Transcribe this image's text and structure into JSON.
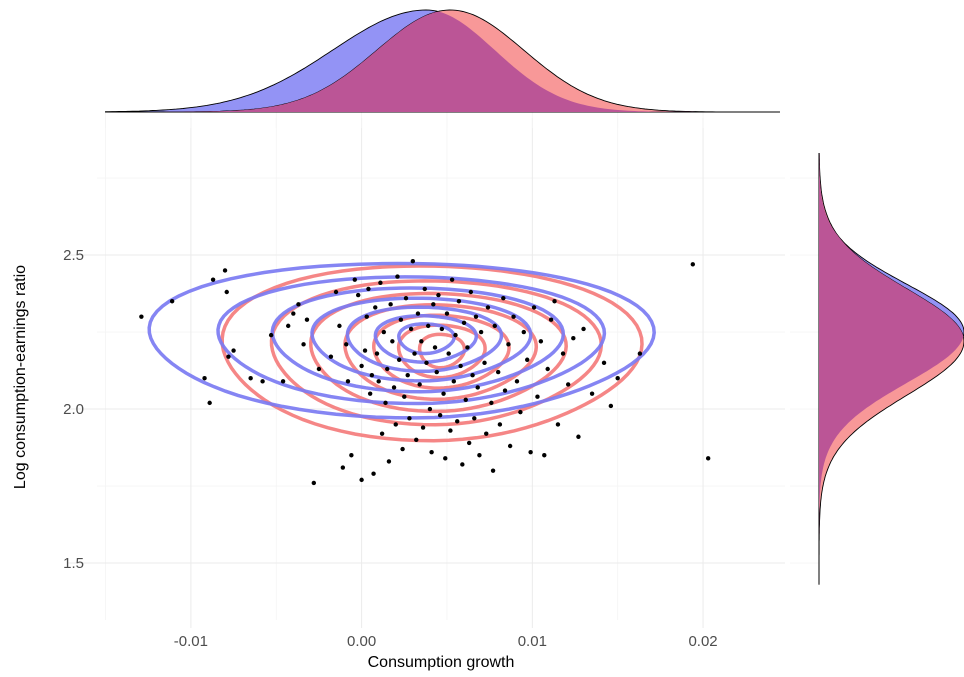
{
  "chart_data": {
    "type": "scatter",
    "xlabel": "Consumption growth",
    "ylabel": "Log consumption-earnings ratio",
    "xlim": [
      -0.0155,
      0.0248
    ],
    "ylim": [
      1.38,
      2.88
    ],
    "x_ticks": [
      -0.01,
      0.0,
      0.01,
      0.02
    ],
    "x_tick_labels": [
      "-0.01",
      "0.00",
      "0.01",
      "0.02"
    ],
    "y_ticks": [
      1.5,
      2.0,
      2.5
    ],
    "y_tick_labels": [
      "1.5",
      "2.0",
      "2.5"
    ],
    "grid": true,
    "legend": "none",
    "colors": {
      "blue": "#7b7bf2",
      "red": "#f47c7c",
      "blue_fill": "#9393f5",
      "red_fill": "#f89898",
      "overlap_fill": "#bb5596",
      "points": "#000000"
    },
    "points": [
      [
        -0.0129,
        2.3
      ],
      [
        -0.0111,
        2.35
      ],
      [
        -0.0092,
        2.1
      ],
      [
        -0.0089,
        2.02
      ],
      [
        -0.0087,
        2.42
      ],
      [
        -0.008,
        2.45
      ],
      [
        -0.0079,
        2.38
      ],
      [
        -0.0078,
        2.17
      ],
      [
        -0.0075,
        2.19
      ],
      [
        -0.0065,
        2.1
      ],
      [
        -0.0058,
        2.09
      ],
      [
        -0.0053,
        2.24
      ],
      [
        -0.0046,
        2.09
      ],
      [
        -0.0043,
        2.27
      ],
      [
        -0.004,
        2.31
      ],
      [
        -0.0037,
        2.34
      ],
      [
        -0.0034,
        2.21
      ],
      [
        -0.0032,
        2.29
      ],
      [
        -0.0028,
        1.76
      ],
      [
        -0.0025,
        2.13
      ],
      [
        -0.0018,
        2.17
      ],
      [
        -0.0015,
        2.38
      ],
      [
        -0.0013,
        2.27
      ],
      [
        -0.0011,
        1.81
      ],
      [
        -0.0009,
        2.21
      ],
      [
        -0.0008,
        2.09
      ],
      [
        -0.0006,
        1.85
      ],
      [
        -0.0004,
        2.42
      ],
      [
        -0.0002,
        2.37
      ],
      [
        0.0,
        1.77
      ],
      [
        0.0,
        2.14
      ],
      [
        0.0002,
        2.19
      ],
      [
        0.0003,
        2.3
      ],
      [
        0.0004,
        2.39
      ],
      [
        0.0005,
        2.05
      ],
      [
        0.0006,
        2.11
      ],
      [
        0.0007,
        1.79
      ],
      [
        0.0008,
        2.33
      ],
      [
        0.0009,
        2.18
      ],
      [
        0.001,
        2.09
      ],
      [
        0.0011,
        2.41
      ],
      [
        0.0012,
        1.92
      ],
      [
        0.0013,
        2.25
      ],
      [
        0.0014,
        2.02
      ],
      [
        0.0015,
        2.13
      ],
      [
        0.0016,
        1.83
      ],
      [
        0.0017,
        2.34
      ],
      [
        0.0018,
        2.22
      ],
      [
        0.0019,
        2.07
      ],
      [
        0.002,
        1.95
      ],
      [
        0.0021,
        2.43
      ],
      [
        0.0022,
        2.16
      ],
      [
        0.0023,
        2.29
      ],
      [
        0.0024,
        1.87
      ],
      [
        0.0025,
        2.04
      ],
      [
        0.0026,
        2.36
      ],
      [
        0.0027,
        2.11
      ],
      [
        0.0028,
        1.97
      ],
      [
        0.0029,
        2.26
      ],
      [
        0.003,
        2.48
      ],
      [
        0.0031,
        2.18
      ],
      [
        0.0032,
        1.9
      ],
      [
        0.0033,
        2.31
      ],
      [
        0.0034,
        2.08
      ],
      [
        0.0035,
        2.22
      ],
      [
        0.0036,
        1.94
      ],
      [
        0.0037,
        2.39
      ],
      [
        0.0038,
        2.15
      ],
      [
        0.0039,
        2.27
      ],
      [
        0.004,
        2.0
      ],
      [
        0.0041,
        1.86
      ],
      [
        0.0042,
        2.34
      ],
      [
        0.0043,
        2.2
      ],
      [
        0.0044,
        2.12
      ],
      [
        0.0045,
        2.37
      ],
      [
        0.0046,
        1.98
      ],
      [
        0.0047,
        2.26
      ],
      [
        0.0048,
        2.05
      ],
      [
        0.0049,
        1.84
      ],
      [
        0.005,
        2.31
      ],
      [
        0.0051,
        2.18
      ],
      [
        0.0052,
        1.93
      ],
      [
        0.0053,
        2.42
      ],
      [
        0.0054,
        2.09
      ],
      [
        0.0055,
        2.24
      ],
      [
        0.0056,
        1.96
      ],
      [
        0.0057,
        2.35
      ],
      [
        0.0058,
        2.14
      ],
      [
        0.0059,
        1.82
      ],
      [
        0.006,
        2.28
      ],
      [
        0.0061,
        2.03
      ],
      [
        0.0062,
        2.2
      ],
      [
        0.0063,
        1.89
      ],
      [
        0.0064,
        2.38
      ],
      [
        0.0065,
        2.11
      ],
      [
        0.0066,
        1.97
      ],
      [
        0.0067,
        2.3
      ],
      [
        0.0068,
        2.07
      ],
      [
        0.0069,
        1.85
      ],
      [
        0.007,
        2.25
      ],
      [
        0.0072,
        2.15
      ],
      [
        0.0073,
        1.92
      ],
      [
        0.0074,
        2.33
      ],
      [
        0.0076,
        2.02
      ],
      [
        0.0077,
        1.8
      ],
      [
        0.0078,
        2.27
      ],
      [
        0.008,
        2.12
      ],
      [
        0.0081,
        1.95
      ],
      [
        0.0083,
        2.36
      ],
      [
        0.0084,
        2.06
      ],
      [
        0.0086,
        2.21
      ],
      [
        0.0087,
        1.88
      ],
      [
        0.0089,
        2.3
      ],
      [
        0.0091,
        2.09
      ],
      [
        0.0093,
        1.99
      ],
      [
        0.0095,
        2.25
      ],
      [
        0.0097,
        2.16
      ],
      [
        0.0099,
        1.86
      ],
      [
        0.0101,
        2.33
      ],
      [
        0.0103,
        2.04
      ],
      [
        0.0105,
        2.22
      ],
      [
        0.0107,
        1.85
      ],
      [
        0.0109,
        2.13
      ],
      [
        0.0111,
        2.29
      ],
      [
        0.0113,
        2.35
      ],
      [
        0.0115,
        1.95
      ],
      [
        0.0118,
        2.18
      ],
      [
        0.0121,
        2.08
      ],
      [
        0.0124,
        2.23
      ],
      [
        0.0127,
        1.91
      ],
      [
        0.013,
        2.26
      ],
      [
        0.0135,
        2.05
      ],
      [
        0.0142,
        2.15
      ],
      [
        0.0146,
        2.01
      ],
      [
        0.015,
        2.1
      ],
      [
        0.0163,
        2.18
      ],
      [
        0.0194,
        2.47
      ],
      [
        0.0203,
        1.84
      ]
    ],
    "contours": {
      "blue": {
        "center": [
          0.0038,
          2.23
        ],
        "levels": [
          {
            "rx": 0.014,
            "ry": 0.25,
            "skew": 0.18
          },
          {
            "rx": 0.0108,
            "ry": 0.205,
            "skew": 0.15
          },
          {
            "rx": 0.0082,
            "ry": 0.168,
            "skew": 0.12
          },
          {
            "rx": 0.0062,
            "ry": 0.134,
            "skew": 0.1
          },
          {
            "rx": 0.0044,
            "ry": 0.104,
            "skew": 0.07
          },
          {
            "rx": 0.0029,
            "ry": 0.075,
            "skew": 0.05
          },
          {
            "rx": 0.0016,
            "ry": 0.048,
            "skew": 0.03
          }
        ]
      },
      "red": {
        "center": [
          0.0047,
          2.19
        ],
        "levels": [
          {
            "rx": 0.0119,
            "ry": 0.283,
            "skew": 0.1
          },
          {
            "rx": 0.0094,
            "ry": 0.233,
            "skew": 0.08
          },
          {
            "rx": 0.0073,
            "ry": 0.191,
            "skew": 0.07
          },
          {
            "rx": 0.0055,
            "ry": 0.153,
            "skew": 0.05
          },
          {
            "rx": 0.0039,
            "ry": 0.118,
            "skew": 0.04
          },
          {
            "rx": 0.0025,
            "ry": 0.085,
            "skew": 0.03
          },
          {
            "rx": 0.0013,
            "ry": 0.054,
            "skew": 0.02
          }
        ]
      }
    },
    "marginal_x": {
      "blue": {
        "mode": 0.0038,
        "sd_left": 0.0055,
        "sd_right": 0.004
      },
      "red": {
        "mode": 0.0052,
        "sd_left": 0.0043,
        "sd_right": 0.0043
      },
      "range": [
        -0.015,
        0.0245
      ]
    },
    "marginal_y": {
      "blue": {
        "mode": 2.25,
        "sd_low": 0.165,
        "sd_high": 0.155
      },
      "red": {
        "mode": 2.22,
        "sd_low": 0.175,
        "sd_high": 0.17
      },
      "range": [
        1.43,
        2.83
      ]
    }
  }
}
